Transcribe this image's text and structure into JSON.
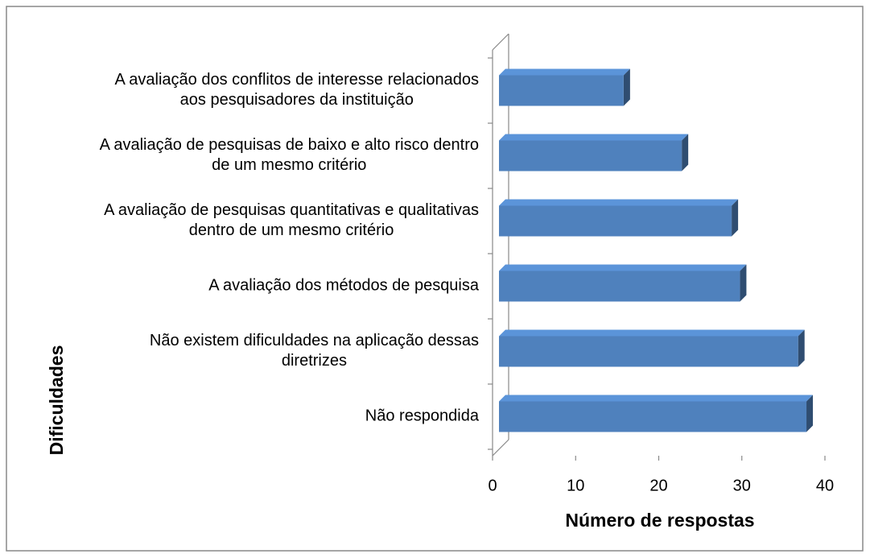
{
  "chart_data": {
    "type": "bar",
    "orientation": "horizontal",
    "x_label": "Número de respostas",
    "y_label": "Dificuldades",
    "categories": [
      "A avaliação dos conflitos de interesse relacionados aos pesquisadores da instituição",
      "A avaliação de pesquisas de baixo e alto risco dentro de um mesmo critério",
      "A avaliação de pesquisas quantitativas e qualitativas dentro de um mesmo critério",
      "A avaliação dos métodos de pesquisa",
      "Não existem dificuldades na aplicação dessas diretrizes",
      "Não respondida"
    ],
    "values": [
      15,
      22,
      28,
      29,
      36,
      37
    ],
    "color": "#4f81bd",
    "xlim": [
      0,
      40
    ],
    "xticks": [
      0,
      10,
      20,
      30,
      40
    ]
  }
}
